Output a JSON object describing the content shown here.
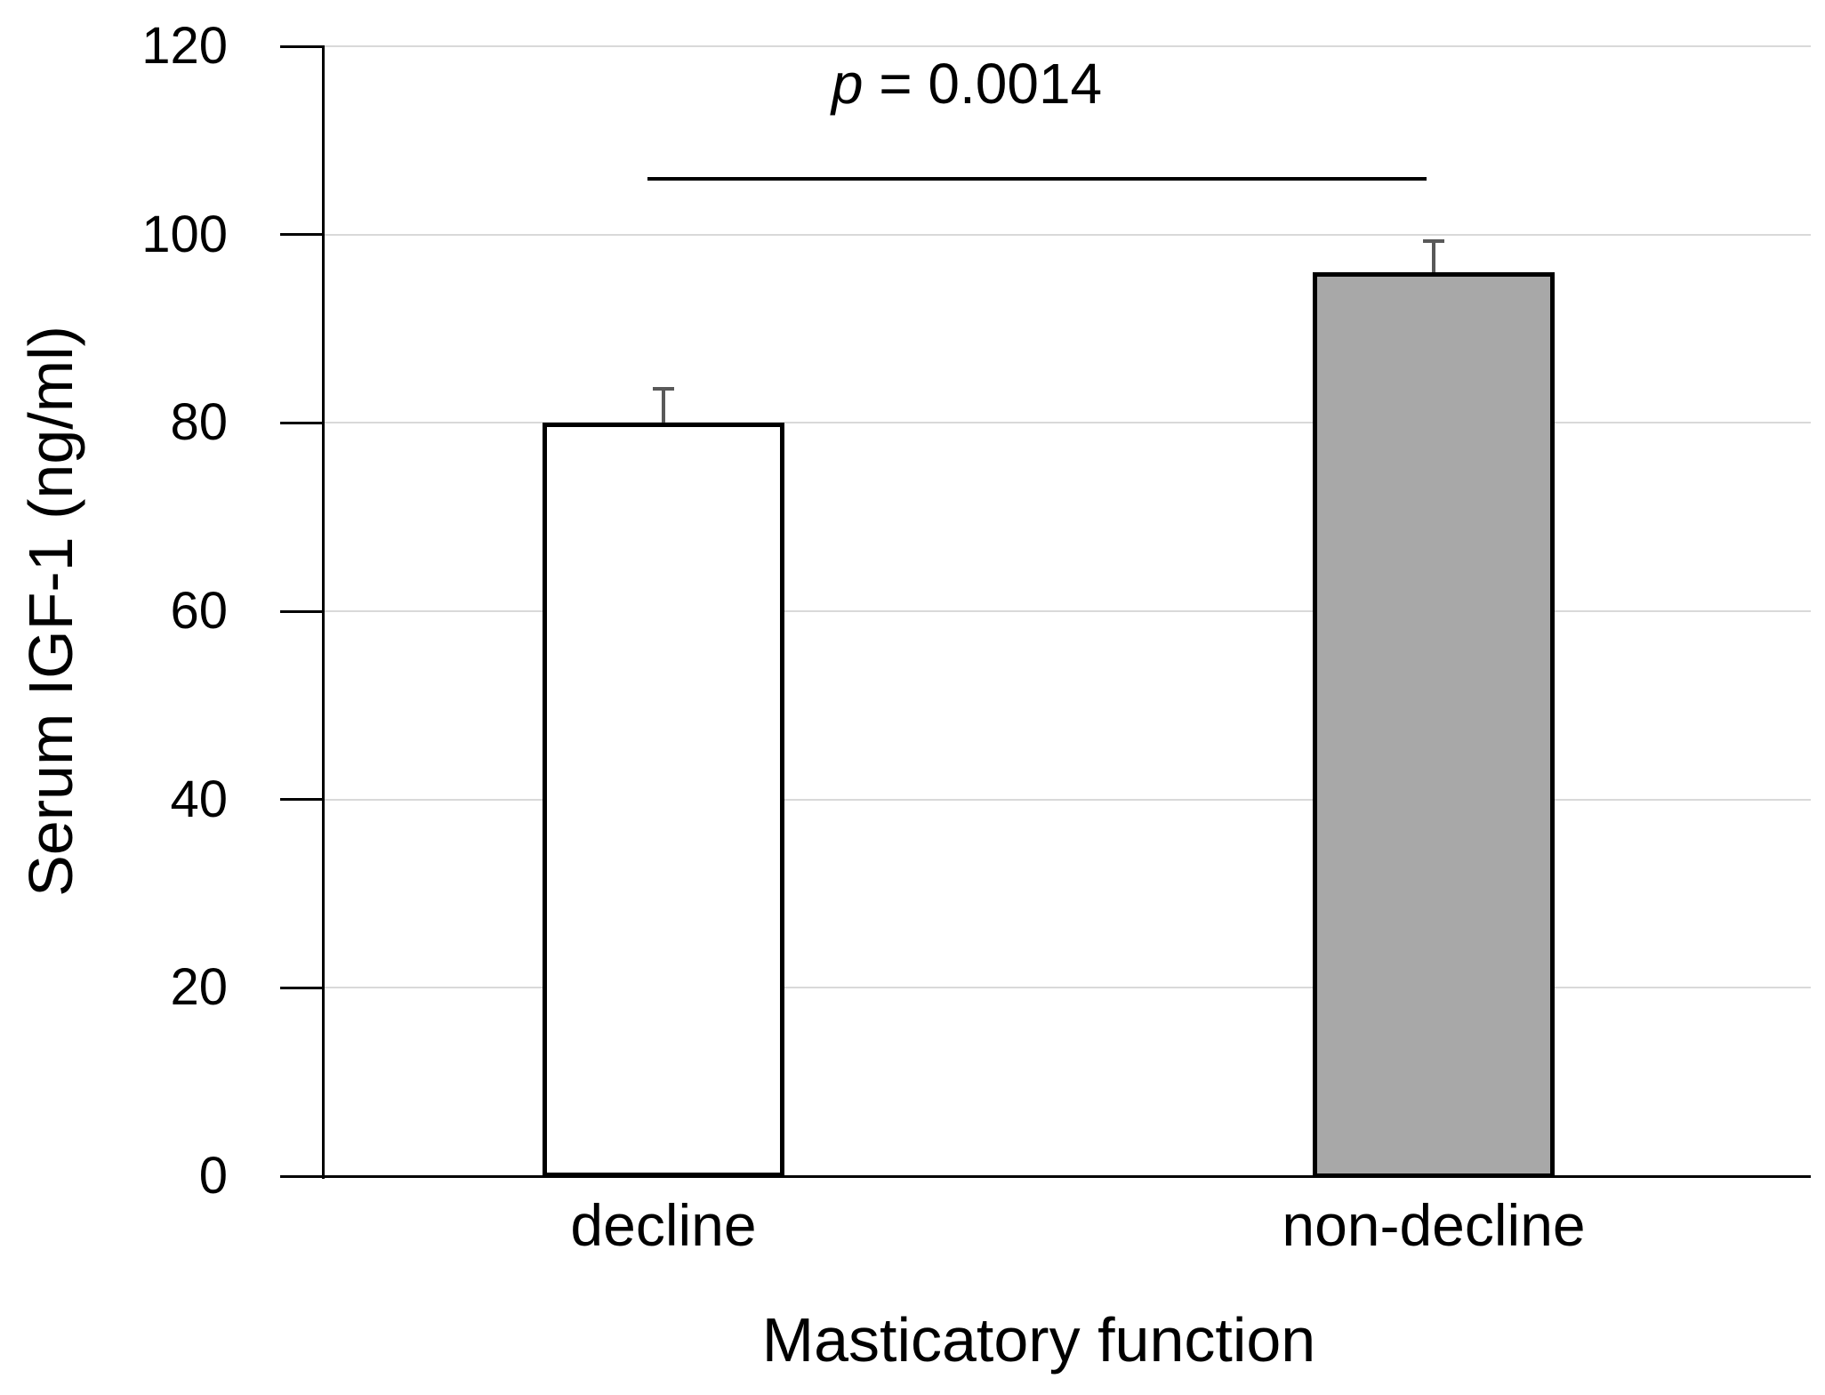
{
  "figure": {
    "background": "#ffffff"
  },
  "chart_data": {
    "type": "bar",
    "title": "",
    "categories": [
      "decline",
      "non-decline"
    ],
    "values": [
      80,
      96
    ],
    "error_plus": [
      3.6,
      3.3
    ],
    "xlabel": "Masticatory function",
    "ylabel": "Serum IGF-1 (ng/ml)",
    "ylim": [
      0,
      120
    ],
    "yticks": [
      0,
      20,
      40,
      60,
      80,
      100,
      120
    ],
    "grid": "horizontal",
    "legend": "none",
    "bar_fills": [
      "#ffffff",
      "#a8a8a8"
    ],
    "bar_border_color": "#000000",
    "errorbar_color": "#595959",
    "gridline_color": "#d9d9d9",
    "axis_color": "#000000",
    "annotation": {
      "full_text": "p = 0.0014",
      "symbol": "p",
      "rest": " = 0.0014"
    }
  }
}
